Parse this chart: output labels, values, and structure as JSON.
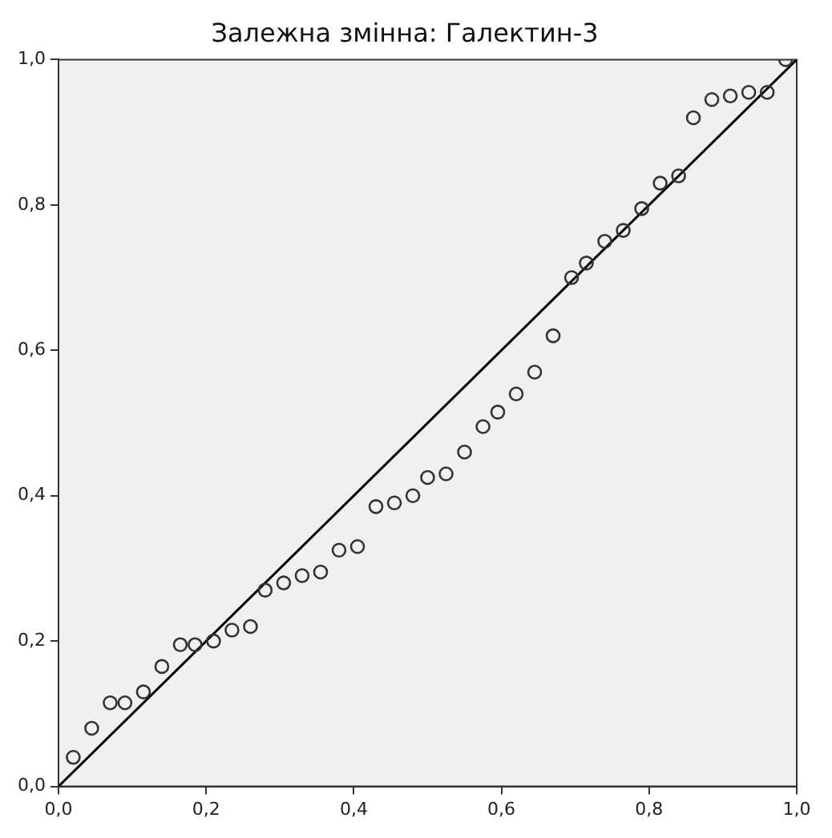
{
  "chart_data": {
    "type": "scatter",
    "title": "Залежна змінна: Галектин-3",
    "grid": false,
    "legend": false,
    "xlim": [
      0,
      1
    ],
    "ylim": [
      0,
      1
    ],
    "xticks": [
      {
        "value": 0,
        "label": "0,0"
      },
      {
        "value": 0.2,
        "label": "0,2"
      },
      {
        "value": 0.4,
        "label": "0,4"
      },
      {
        "value": 0.6,
        "label": "0,6"
      },
      {
        "value": 0.8,
        "label": "0,8"
      },
      {
        "value": 1,
        "label": "1,0"
      }
    ],
    "yticks": [
      {
        "value": 0,
        "label": "0,0"
      },
      {
        "value": 0.2,
        "label": "0,2"
      },
      {
        "value": 0.4,
        "label": "0,4"
      },
      {
        "value": 0.6,
        "label": "0,6"
      },
      {
        "value": 0.8,
        "label": "0,8"
      },
      {
        "value": 1,
        "label": "1,0"
      }
    ],
    "series": [
      {
        "marker": "circle",
        "color": "#333333",
        "x": [
          0.02,
          0.045,
          0.07,
          0.09,
          0.115,
          0.14,
          0.165,
          0.185,
          0.21,
          0.235,
          0.26,
          0.28,
          0.305,
          0.33,
          0.355,
          0.38,
          0.405,
          0.43,
          0.455,
          0.48,
          0.5,
          0.525,
          0.55,
          0.575,
          0.595,
          0.62,
          0.645,
          0.67,
          0.695,
          0.715,
          0.74,
          0.765,
          0.79,
          0.815,
          0.84,
          0.86,
          0.885,
          0.91,
          0.935,
          0.96,
          0.985
        ],
        "values": [
          0.04,
          0.08,
          0.115,
          0.115,
          0.13,
          0.165,
          0.195,
          0.195,
          0.2,
          0.215,
          0.22,
          0.27,
          0.28,
          0.29,
          0.295,
          0.325,
          0.33,
          0.385,
          0.39,
          0.4,
          0.425,
          0.43,
          0.46,
          0.495,
          0.515,
          0.54,
          0.57,
          0.62,
          0.7,
          0.72,
          0.75,
          0.765,
          0.795,
          0.83,
          0.84,
          0.92,
          0.945,
          0.95,
          0.955,
          0.955,
          1.0
        ]
      },
      {
        "type": "line",
        "marker": "none",
        "color": "#000000",
        "x": [
          0,
          1
        ],
        "values": [
          0,
          1
        ]
      }
    ]
  }
}
